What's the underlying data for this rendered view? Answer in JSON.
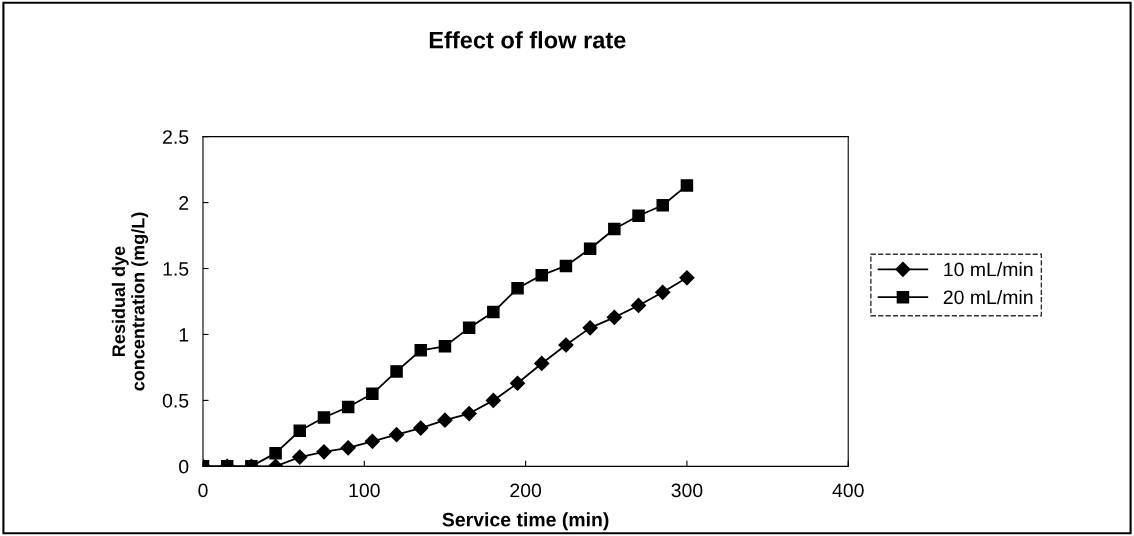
{
  "chart_data": {
    "type": "line",
    "title": "Effect of flow rate",
    "xlabel": "Service time (min)",
    "ylabel": "Residual dye\nconcentration (mg/L)",
    "x": [
      0,
      15,
      30,
      45,
      60,
      75,
      90,
      105,
      120,
      135,
      150,
      165,
      180,
      195,
      210,
      225,
      240,
      255,
      270,
      285,
      300
    ],
    "series": [
      {
        "name": "10 mL/min",
        "color": "#000000",
        "marker": "diamond",
        "values": [
          0,
          0,
          0,
          0,
          0.07,
          0.11,
          0.14,
          0.19,
          0.24,
          0.29,
          0.35,
          0.4,
          0.5,
          0.63,
          0.78,
          0.92,
          1.05,
          1.13,
          1.22,
          1.32,
          1.43
        ]
      },
      {
        "name": "20 mL/min",
        "color": "#000000",
        "marker": "square",
        "values": [
          0,
          0,
          0,
          0.1,
          0.27,
          0.37,
          0.45,
          0.55,
          0.72,
          0.88,
          0.91,
          1.05,
          1.17,
          1.35,
          1.45,
          1.52,
          1.65,
          1.8,
          1.9,
          1.98,
          2.13
        ]
      }
    ],
    "xlim": [
      0,
      400
    ],
    "xticks": [
      0,
      100,
      200,
      300,
      400
    ],
    "ylim": [
      0,
      2.5
    ],
    "yticks": [
      0,
      0.5,
      1,
      1.5,
      2,
      2.5
    ],
    "grid": false,
    "legend": "right",
    "line_style": "solid"
  }
}
